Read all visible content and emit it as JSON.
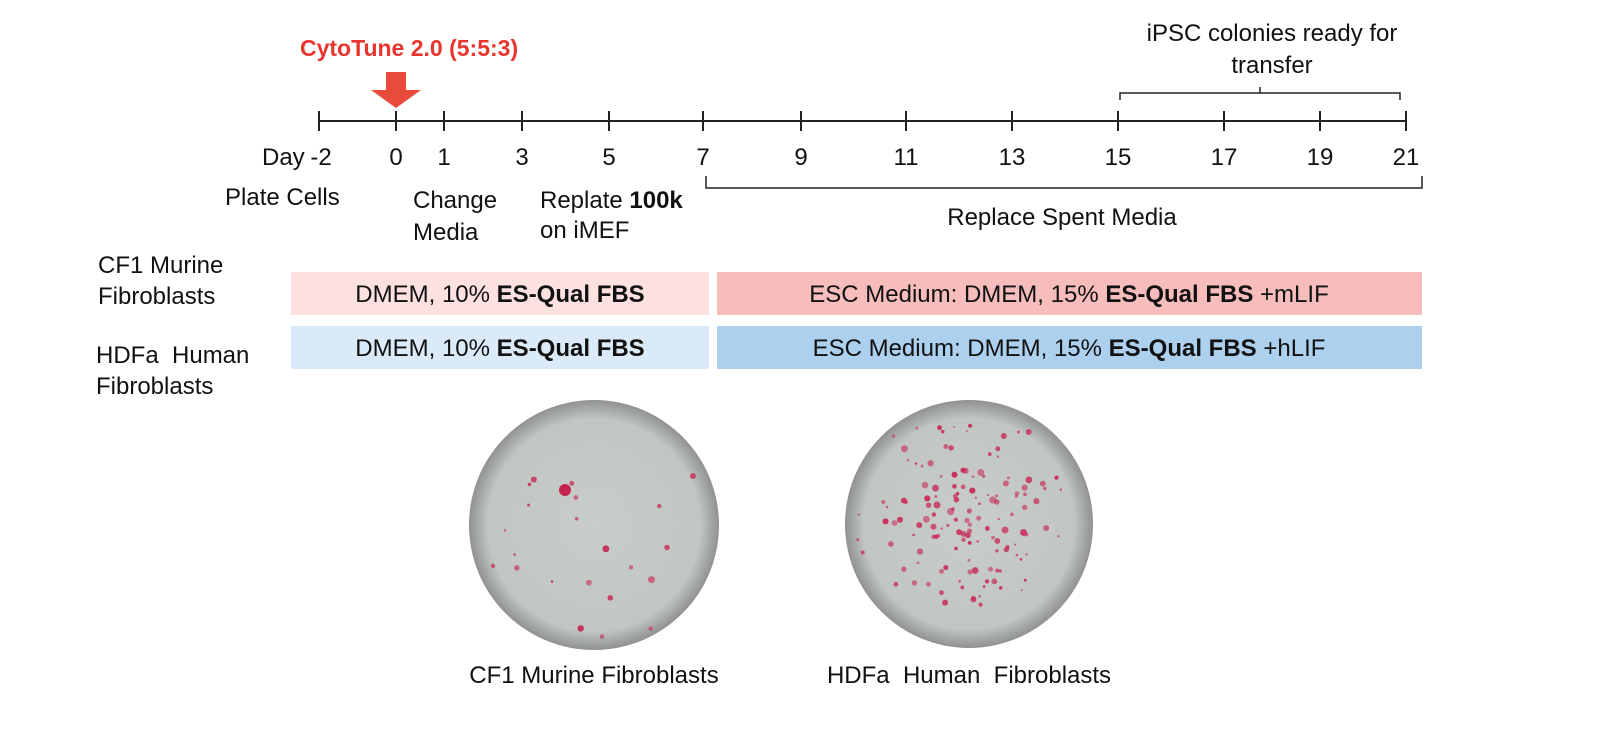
{
  "treatment": {
    "label": "CytoTune 2.0 (5:5:3)"
  },
  "ready": {
    "lines": [
      "iPSC colonies ready for",
      "transfer"
    ]
  },
  "timeline": {
    "axis_label": "Day",
    "ticks": [
      "-2",
      "0",
      "1",
      "3",
      "5",
      "7",
      "9",
      "11",
      "13",
      "15",
      "17",
      "19",
      "21"
    ]
  },
  "steps": {
    "plate": "Plate Cells",
    "change": [
      "Change",
      "Media"
    ],
    "replate": {
      "prefix": "Replate ",
      "bold": "100k",
      "line2": "on iMEF"
    },
    "replace": "Replace Spent Media"
  },
  "rows": [
    {
      "label": [
        "CF1 Murine",
        "Fibroblasts"
      ],
      "early": {
        "prefix": "DMEM, 10% ",
        "bold": "ES-Qual FBS"
      },
      "late": {
        "prefix": "ESC Medium: DMEM, 15% ",
        "bold": "ES-Qual FBS",
        "suffix": " +mLIF"
      }
    },
    {
      "label": [
        "HDFa  Human",
        "Fibroblasts"
      ],
      "early": {
        "prefix": "DMEM, 10% ",
        "bold": "ES-Qual FBS"
      },
      "late": {
        "prefix": "ESC Medium: DMEM, 15% ",
        "bold": "ES-Qual FBS",
        "suffix": " +hLIF"
      }
    }
  ],
  "dishes": [
    {
      "caption": "CF1 Murine Fibroblasts"
    },
    {
      "caption": "HDFa  Human  Fibroblasts"
    }
  ]
}
